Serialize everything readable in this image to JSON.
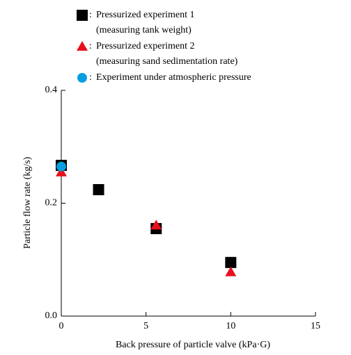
{
  "chart_data": {
    "type": "scatter",
    "xlabel": "Back pressure of particle valve  (kPa·G)",
    "ylabel": "Particle flow rate  (kg/s)",
    "legend_separator": ":",
    "series": [
      {
        "name": "Pressurized experiment 1",
        "description": "(measuring tank weight)",
        "color": "#000000",
        "marker": "square",
        "x": [
          0,
          2.2,
          5.6,
          10
        ],
        "values": [
          0.267,
          0.224,
          0.155,
          0.095
        ]
      },
      {
        "name": "Pressurized experiment 2",
        "description": "(measuring sand sedimentation rate)",
        "color": "#e8101e",
        "marker": "triangle",
        "x": [
          0,
          5.6,
          10
        ],
        "values": [
          0.255,
          0.161,
          0.078
        ]
      },
      {
        "name": "Experiment under atmospheric pressure",
        "color": "#0a9ee0",
        "marker": "circle",
        "x": [
          0
        ],
        "values": [
          0.265
        ]
      }
    ],
    "xlim": [
      0,
      15
    ],
    "xticks": [
      0,
      5,
      10,
      15
    ],
    "ylim": [
      0,
      0.4
    ],
    "yticks": [
      {
        "value": 0,
        "label": "0.0"
      },
      0.2,
      0.4
    ]
  }
}
